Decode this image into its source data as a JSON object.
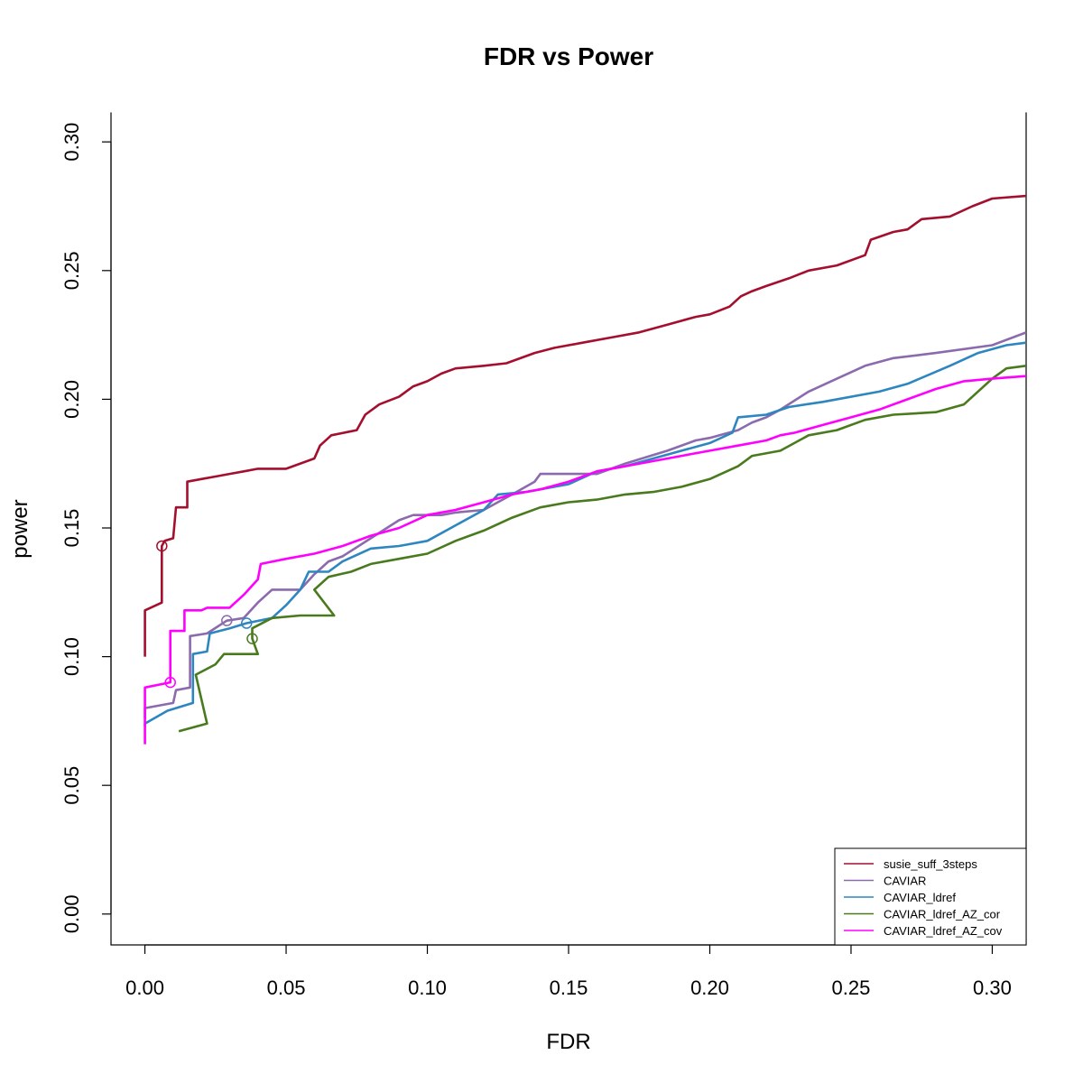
{
  "chart_data": {
    "type": "line",
    "title": "FDR vs Power",
    "xlabel": "FDR",
    "ylabel": "power",
    "xlim": [
      -0.012,
      0.312
    ],
    "ylim": [
      -0.012,
      0.312
    ],
    "x_ticks": [
      "0.00",
      "0.05",
      "0.10",
      "0.15",
      "0.20",
      "0.25",
      "0.30"
    ],
    "y_ticks": [
      "0.00",
      "0.05",
      "0.10",
      "0.15",
      "0.20",
      "0.25",
      "0.30"
    ],
    "grid": false,
    "legend_position": "bottom-right",
    "series": [
      {
        "name": "susie_suff_3steps",
        "color": "#A50F2E",
        "marker": {
          "x": 0.006,
          "y": 0.143
        },
        "points": [
          [
            0.0,
            0.1
          ],
          [
            0.0,
            0.118
          ],
          [
            0.006,
            0.121
          ],
          [
            0.006,
            0.143
          ],
          [
            0.007,
            0.145
          ],
          [
            0.01,
            0.146
          ],
          [
            0.011,
            0.158
          ],
          [
            0.015,
            0.158
          ],
          [
            0.015,
            0.168
          ],
          [
            0.02,
            0.169
          ],
          [
            0.025,
            0.17
          ],
          [
            0.03,
            0.171
          ],
          [
            0.035,
            0.172
          ],
          [
            0.04,
            0.173
          ],
          [
            0.05,
            0.173
          ],
          [
            0.06,
            0.177
          ],
          [
            0.062,
            0.182
          ],
          [
            0.066,
            0.186
          ],
          [
            0.075,
            0.188
          ],
          [
            0.078,
            0.194
          ],
          [
            0.083,
            0.198
          ],
          [
            0.09,
            0.201
          ],
          [
            0.095,
            0.205
          ],
          [
            0.1,
            0.207
          ],
          [
            0.105,
            0.21
          ],
          [
            0.11,
            0.212
          ],
          [
            0.12,
            0.213
          ],
          [
            0.128,
            0.214
          ],
          [
            0.138,
            0.218
          ],
          [
            0.145,
            0.22
          ],
          [
            0.155,
            0.222
          ],
          [
            0.165,
            0.224
          ],
          [
            0.175,
            0.226
          ],
          [
            0.185,
            0.229
          ],
          [
            0.195,
            0.232
          ],
          [
            0.2,
            0.233
          ],
          [
            0.207,
            0.236
          ],
          [
            0.211,
            0.24
          ],
          [
            0.215,
            0.242
          ],
          [
            0.22,
            0.244
          ],
          [
            0.228,
            0.247
          ],
          [
            0.235,
            0.25
          ],
          [
            0.245,
            0.252
          ],
          [
            0.255,
            0.256
          ],
          [
            0.257,
            0.262
          ],
          [
            0.265,
            0.265
          ],
          [
            0.27,
            0.266
          ],
          [
            0.275,
            0.27
          ],
          [
            0.285,
            0.271
          ],
          [
            0.293,
            0.275
          ],
          [
            0.3,
            0.278
          ],
          [
            0.312,
            0.279
          ]
        ]
      },
      {
        "name": "CAVIAR",
        "color": "#8B6AAD",
        "marker": {
          "x": 0.029,
          "y": 0.114
        },
        "points": [
          [
            0.0,
            0.076
          ],
          [
            0.0,
            0.08
          ],
          [
            0.01,
            0.082
          ],
          [
            0.011,
            0.087
          ],
          [
            0.016,
            0.088
          ],
          [
            0.016,
            0.108
          ],
          [
            0.022,
            0.109
          ],
          [
            0.029,
            0.114
          ],
          [
            0.035,
            0.115
          ],
          [
            0.04,
            0.121
          ],
          [
            0.045,
            0.126
          ],
          [
            0.055,
            0.126
          ],
          [
            0.06,
            0.132
          ],
          [
            0.065,
            0.137
          ],
          [
            0.07,
            0.139
          ],
          [
            0.08,
            0.146
          ],
          [
            0.09,
            0.153
          ],
          [
            0.095,
            0.155
          ],
          [
            0.105,
            0.155
          ],
          [
            0.11,
            0.156
          ],
          [
            0.12,
            0.157
          ],
          [
            0.13,
            0.163
          ],
          [
            0.138,
            0.168
          ],
          [
            0.14,
            0.171
          ],
          [
            0.16,
            0.171
          ],
          [
            0.17,
            0.175
          ],
          [
            0.185,
            0.18
          ],
          [
            0.195,
            0.184
          ],
          [
            0.2,
            0.185
          ],
          [
            0.21,
            0.188
          ],
          [
            0.215,
            0.191
          ],
          [
            0.22,
            0.193
          ],
          [
            0.225,
            0.196
          ],
          [
            0.235,
            0.203
          ],
          [
            0.245,
            0.208
          ],
          [
            0.255,
            0.213
          ],
          [
            0.265,
            0.216
          ],
          [
            0.28,
            0.218
          ],
          [
            0.3,
            0.221
          ],
          [
            0.312,
            0.226
          ]
        ]
      },
      {
        "name": "CAVIAR_ldref",
        "color": "#2E86C1",
        "marker": {
          "x": 0.036,
          "y": 0.113
        },
        "points": [
          [
            0.0,
            0.073
          ],
          [
            0.0,
            0.074
          ],
          [
            0.008,
            0.079
          ],
          [
            0.017,
            0.082
          ],
          [
            0.017,
            0.101
          ],
          [
            0.022,
            0.102
          ],
          [
            0.023,
            0.109
          ],
          [
            0.03,
            0.111
          ],
          [
            0.036,
            0.113
          ],
          [
            0.045,
            0.115
          ],
          [
            0.05,
            0.12
          ],
          [
            0.055,
            0.126
          ],
          [
            0.058,
            0.133
          ],
          [
            0.065,
            0.133
          ],
          [
            0.07,
            0.137
          ],
          [
            0.08,
            0.142
          ],
          [
            0.09,
            0.143
          ],
          [
            0.1,
            0.145
          ],
          [
            0.11,
            0.151
          ],
          [
            0.12,
            0.157
          ],
          [
            0.125,
            0.163
          ],
          [
            0.135,
            0.164
          ],
          [
            0.15,
            0.167
          ],
          [
            0.16,
            0.172
          ],
          [
            0.17,
            0.174
          ],
          [
            0.18,
            0.177
          ],
          [
            0.19,
            0.18
          ],
          [
            0.2,
            0.183
          ],
          [
            0.208,
            0.187
          ],
          [
            0.21,
            0.193
          ],
          [
            0.22,
            0.194
          ],
          [
            0.228,
            0.197
          ],
          [
            0.24,
            0.199
          ],
          [
            0.26,
            0.203
          ],
          [
            0.27,
            0.206
          ],
          [
            0.285,
            0.213
          ],
          [
            0.295,
            0.218
          ],
          [
            0.305,
            0.221
          ],
          [
            0.312,
            0.222
          ]
        ]
      },
      {
        "name": "CAVIAR_ldref_AZ_cor",
        "color": "#4A7A1E",
        "marker": {
          "x": 0.038,
          "y": 0.107
        },
        "points": [
          [
            0.012,
            0.071
          ],
          [
            0.022,
            0.074
          ],
          [
            0.018,
            0.093
          ],
          [
            0.025,
            0.097
          ],
          [
            0.028,
            0.101
          ],
          [
            0.035,
            0.101
          ],
          [
            0.04,
            0.101
          ],
          [
            0.038,
            0.107
          ],
          [
            0.038,
            0.111
          ],
          [
            0.045,
            0.115
          ],
          [
            0.055,
            0.116
          ],
          [
            0.067,
            0.116
          ],
          [
            0.06,
            0.126
          ],
          [
            0.065,
            0.131
          ],
          [
            0.073,
            0.133
          ],
          [
            0.08,
            0.136
          ],
          [
            0.09,
            0.138
          ],
          [
            0.1,
            0.14
          ],
          [
            0.11,
            0.145
          ],
          [
            0.12,
            0.149
          ],
          [
            0.13,
            0.154
          ],
          [
            0.14,
            0.158
          ],
          [
            0.15,
            0.16
          ],
          [
            0.16,
            0.161
          ],
          [
            0.17,
            0.163
          ],
          [
            0.18,
            0.164
          ],
          [
            0.19,
            0.166
          ],
          [
            0.2,
            0.169
          ],
          [
            0.21,
            0.174
          ],
          [
            0.215,
            0.178
          ],
          [
            0.225,
            0.18
          ],
          [
            0.235,
            0.186
          ],
          [
            0.245,
            0.188
          ],
          [
            0.255,
            0.192
          ],
          [
            0.265,
            0.194
          ],
          [
            0.28,
            0.195
          ],
          [
            0.29,
            0.198
          ],
          [
            0.3,
            0.208
          ],
          [
            0.305,
            0.212
          ],
          [
            0.312,
            0.213
          ]
        ]
      },
      {
        "name": "CAVIAR_ldref_AZ_cov",
        "color": "#FF00FF",
        "marker": {
          "x": 0.009,
          "y": 0.09
        },
        "points": [
          [
            0.0,
            0.066
          ],
          [
            0.0,
            0.088
          ],
          [
            0.009,
            0.09
          ],
          [
            0.009,
            0.11
          ],
          [
            0.014,
            0.11
          ],
          [
            0.014,
            0.118
          ],
          [
            0.02,
            0.118
          ],
          [
            0.022,
            0.119
          ],
          [
            0.03,
            0.119
          ],
          [
            0.035,
            0.124
          ],
          [
            0.04,
            0.13
          ],
          [
            0.041,
            0.136
          ],
          [
            0.05,
            0.138
          ],
          [
            0.06,
            0.14
          ],
          [
            0.07,
            0.143
          ],
          [
            0.08,
            0.147
          ],
          [
            0.09,
            0.15
          ],
          [
            0.1,
            0.155
          ],
          [
            0.11,
            0.157
          ],
          [
            0.12,
            0.16
          ],
          [
            0.13,
            0.163
          ],
          [
            0.14,
            0.165
          ],
          [
            0.15,
            0.168
          ],
          [
            0.16,
            0.172
          ],
          [
            0.17,
            0.174
          ],
          [
            0.18,
            0.176
          ],
          [
            0.19,
            0.178
          ],
          [
            0.2,
            0.18
          ],
          [
            0.21,
            0.182
          ],
          [
            0.22,
            0.184
          ],
          [
            0.225,
            0.186
          ],
          [
            0.23,
            0.187
          ],
          [
            0.24,
            0.19
          ],
          [
            0.25,
            0.193
          ],
          [
            0.26,
            0.196
          ],
          [
            0.27,
            0.2
          ],
          [
            0.28,
            0.204
          ],
          [
            0.29,
            0.207
          ],
          [
            0.3,
            0.208
          ],
          [
            0.312,
            0.209
          ]
        ]
      }
    ]
  }
}
